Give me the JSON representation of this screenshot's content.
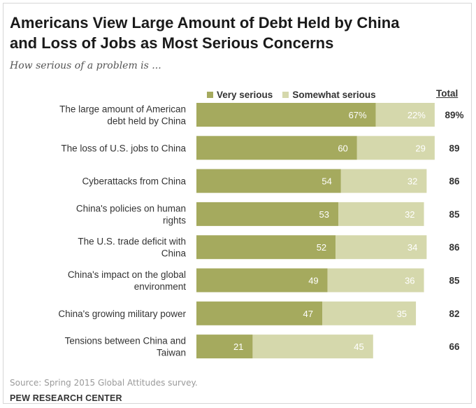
{
  "header": {
    "title_line1": "Americans View Large Amount of Debt Held by China",
    "title_line2": "and Loss of Jobs as Most Serious Concerns",
    "subtitle": "How serious of a problem is ..."
  },
  "legend": {
    "very_serious": "Very serious",
    "somewhat_serious": "Somewhat serious",
    "total": "Total"
  },
  "colors": {
    "very_serious": "#a5aa5e",
    "somewhat_serious": "#d5d8ac"
  },
  "chart_data": {
    "type": "bar",
    "orientation": "horizontal",
    "stacked": true,
    "categories": [
      [
        "The large amount of American",
        "debt held by China"
      ],
      [
        "The loss of U.S. jobs to China"
      ],
      [
        "Cyberattacks from China"
      ],
      [
        "China's policies on human",
        "rights"
      ],
      [
        "The U.S. trade deficit with",
        "China"
      ],
      [
        "China's impact on the global",
        "environment"
      ],
      [
        "China's growing military power"
      ],
      [
        "Tensions between China and",
        "Taiwan"
      ]
    ],
    "series": [
      {
        "name": "Very serious",
        "values": [
          67,
          60,
          54,
          53,
          52,
          49,
          47,
          21
        ],
        "labels": [
          "67%",
          "60",
          "54",
          "53",
          "52",
          "49",
          "47",
          "21"
        ]
      },
      {
        "name": "Somewhat serious",
        "values": [
          22,
          29,
          32,
          32,
          34,
          36,
          35,
          45
        ],
        "labels": [
          "22%",
          "29",
          "32",
          "32",
          "34",
          "36",
          "35",
          "45"
        ]
      }
    ],
    "totals": [
      "89%",
      "89",
      "86",
      "85",
      "86",
      "85",
      "82",
      "66"
    ],
    "xlim": [
      0,
      100
    ]
  },
  "footer": {
    "source": "Source: Spring 2015 Global Attitudes survey.",
    "brand": "PEW RESEARCH CENTER"
  }
}
